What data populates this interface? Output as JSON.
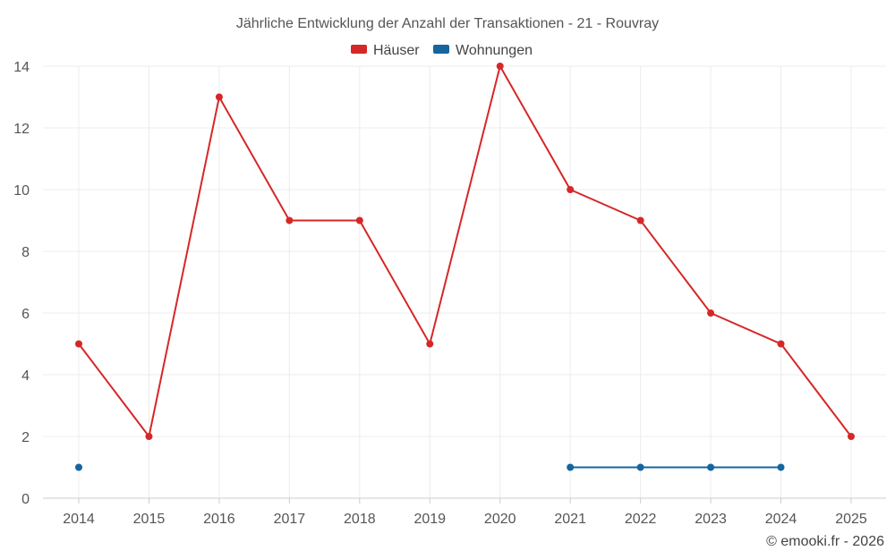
{
  "chart_data": {
    "type": "line",
    "title": "Jährliche Entwicklung der Anzahl der Transaktionen - 21 - Rouvray",
    "xlabel": "",
    "ylabel": "",
    "categories": [
      "2014",
      "2015",
      "2016",
      "2017",
      "2018",
      "2019",
      "2020",
      "2021",
      "2022",
      "2023",
      "2024",
      "2025"
    ],
    "ylim": [
      0,
      14
    ],
    "yticks": [
      0,
      2,
      4,
      6,
      8,
      10,
      12,
      14
    ],
    "grid": true,
    "legend_position": "top-center",
    "series": [
      {
        "name": "Häuser",
        "color": "#d62728",
        "values": [
          5,
          2,
          13,
          9,
          9,
          5,
          14,
          10,
          9,
          6,
          5,
          2
        ]
      },
      {
        "name": "Wohnungen",
        "color": "#1565a0",
        "values": [
          1,
          null,
          null,
          null,
          null,
          null,
          null,
          1,
          1,
          1,
          1,
          null
        ]
      }
    ]
  },
  "credit": "© emooki.fr - 2026"
}
